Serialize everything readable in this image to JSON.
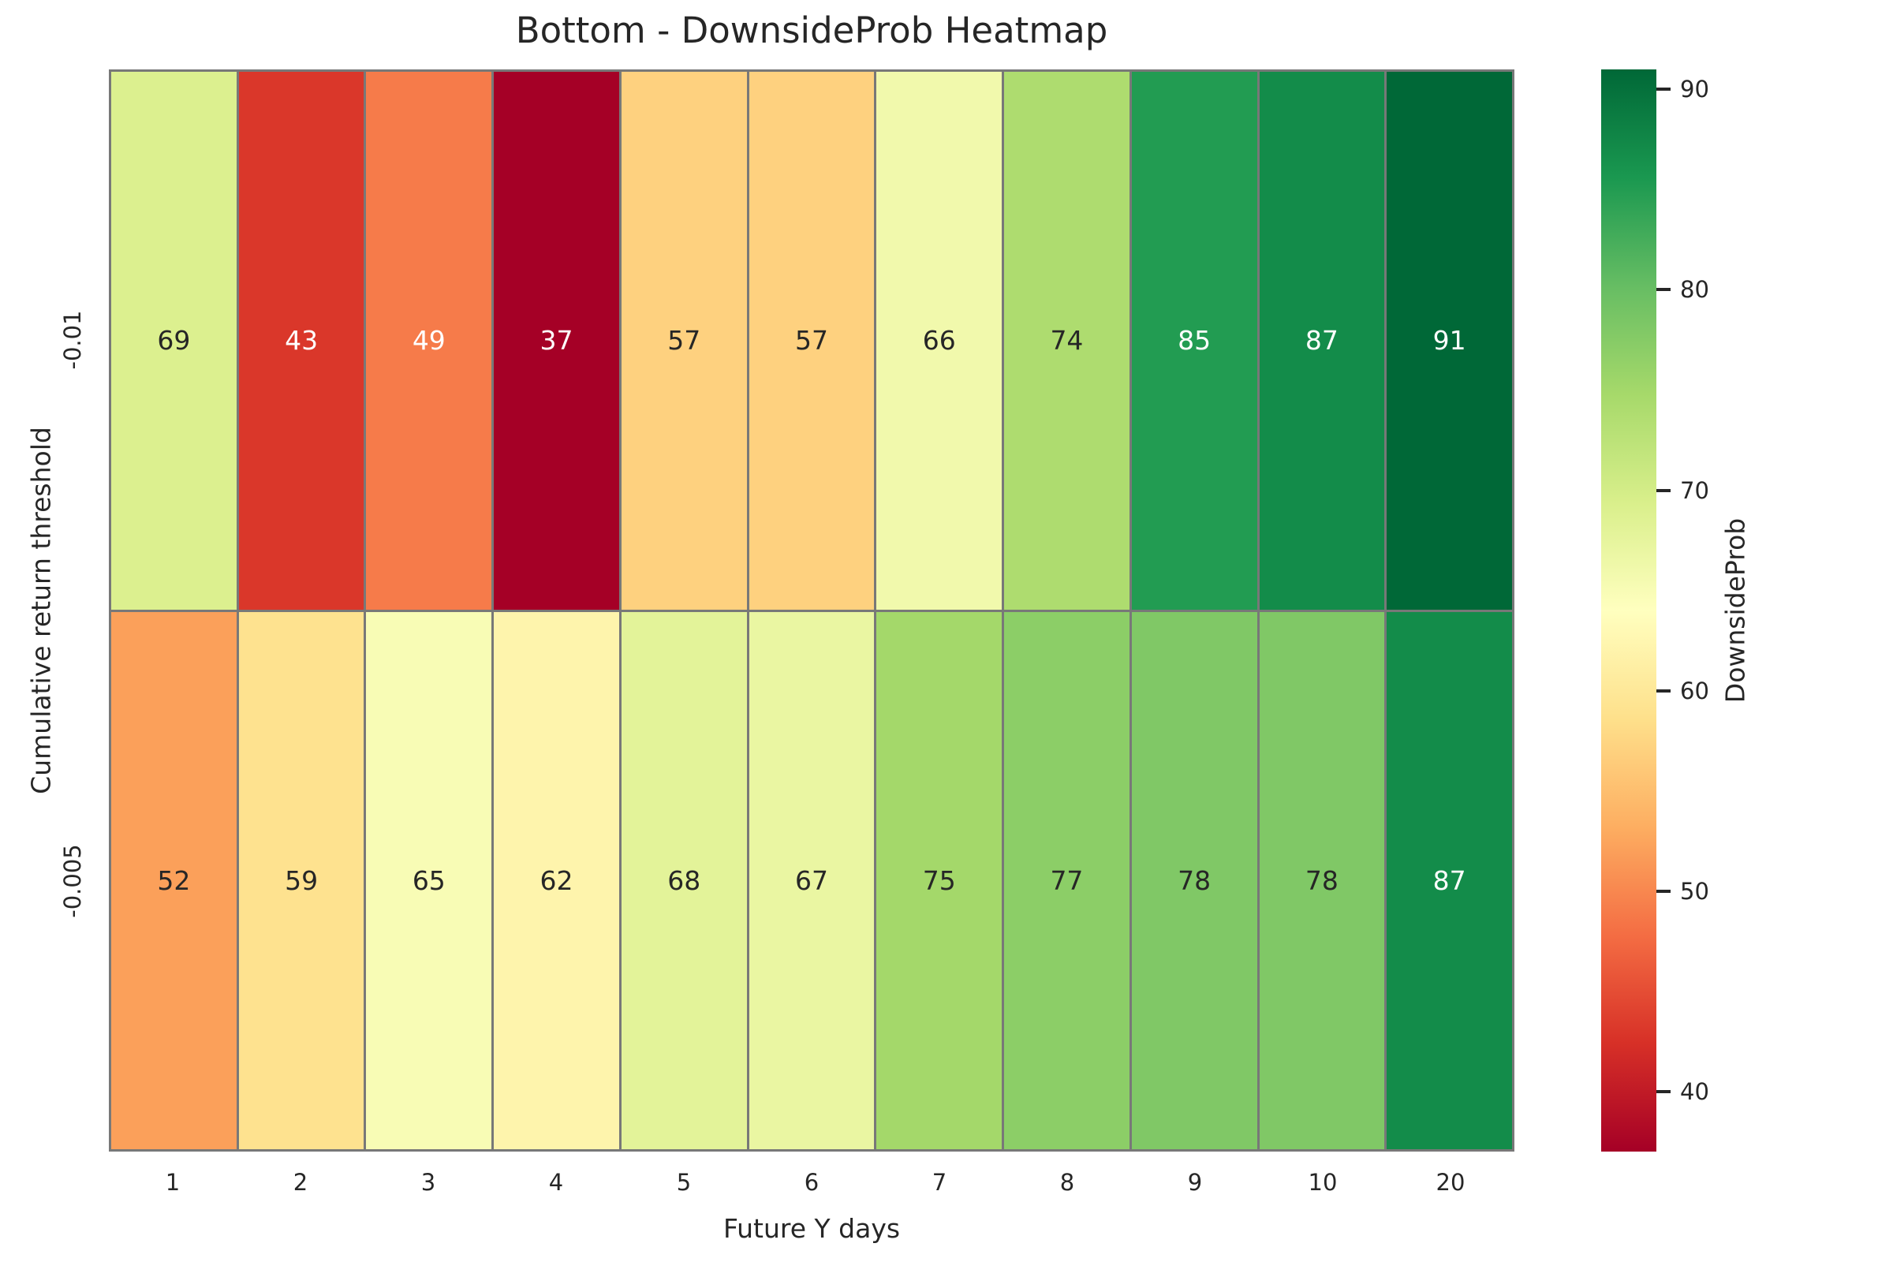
{
  "title": "Bottom - DownsideProb Heatmap",
  "axes": {
    "xlabel": "Future Y days",
    "ylabel": "Cumulative return threshold"
  },
  "chart_data": {
    "type": "heatmap",
    "title": "Bottom - DownsideProb Heatmap",
    "xlabel": "Future Y days",
    "ylabel": "Cumulative return threshold",
    "x_categories": [
      "1",
      "2",
      "3",
      "4",
      "5",
      "6",
      "7",
      "8",
      "9",
      "10",
      "20"
    ],
    "y_categories": [
      "-0.01",
      "-0.005"
    ],
    "values": [
      [
        69,
        43,
        49,
        37,
        57,
        57,
        66,
        74,
        85,
        87,
        91
      ],
      [
        52,
        59,
        65,
        62,
        68,
        67,
        75,
        77,
        78,
        78,
        87
      ]
    ],
    "colormap": "RdYlGn",
    "vmin": 37,
    "vmax": 91,
    "annotated": true,
    "grid_on": false,
    "legend_position": "right-colorbar"
  },
  "style": {
    "cell_colors": [
      [
        "#dcf08f",
        "#da372a",
        "#f67b4a",
        "#a50026",
        "#fed17f",
        "#fed17f",
        "#f1f9ac",
        "#aedc6f",
        "#229c52",
        "#138c4a",
        "#006837"
      ],
      [
        "#fba05a",
        "#fee28f",
        "#f8fcb5",
        "#fef4ac",
        "#e3f399",
        "#eaf6a2",
        "#a4d86a",
        "#8cce67",
        "#80c866",
        "#80c866",
        "#138c4a"
      ]
    ],
    "cell_text_colors": [
      [
        "#262626",
        "#ffffff",
        "#ffffff",
        "#ffffff",
        "#262626",
        "#262626",
        "#262626",
        "#262626",
        "#ffffff",
        "#ffffff",
        "#ffffff"
      ],
      [
        "#262626",
        "#262626",
        "#262626",
        "#262626",
        "#262626",
        "#262626",
        "#262626",
        "#262626",
        "#262626",
        "#262626",
        "#ffffff"
      ]
    ],
    "grid_line_color": "#787878",
    "text_color": "#262626",
    "background": "#ffffff"
  },
  "colorbar": {
    "label": "DownsideProb",
    "tick_values": [
      90,
      80,
      70,
      60,
      50,
      40
    ],
    "tick_labels": [
      "90",
      "80",
      "70",
      "60",
      "50",
      "40"
    ],
    "vmin": 37,
    "vmax": 91,
    "gradient_bottom_to_top": [
      "#a50026",
      "#d73027",
      "#f46d43",
      "#fdae61",
      "#fee08b",
      "#ffffbf",
      "#d9ef8b",
      "#a6d96a",
      "#66bd63",
      "#1a9850",
      "#006837"
    ]
  }
}
